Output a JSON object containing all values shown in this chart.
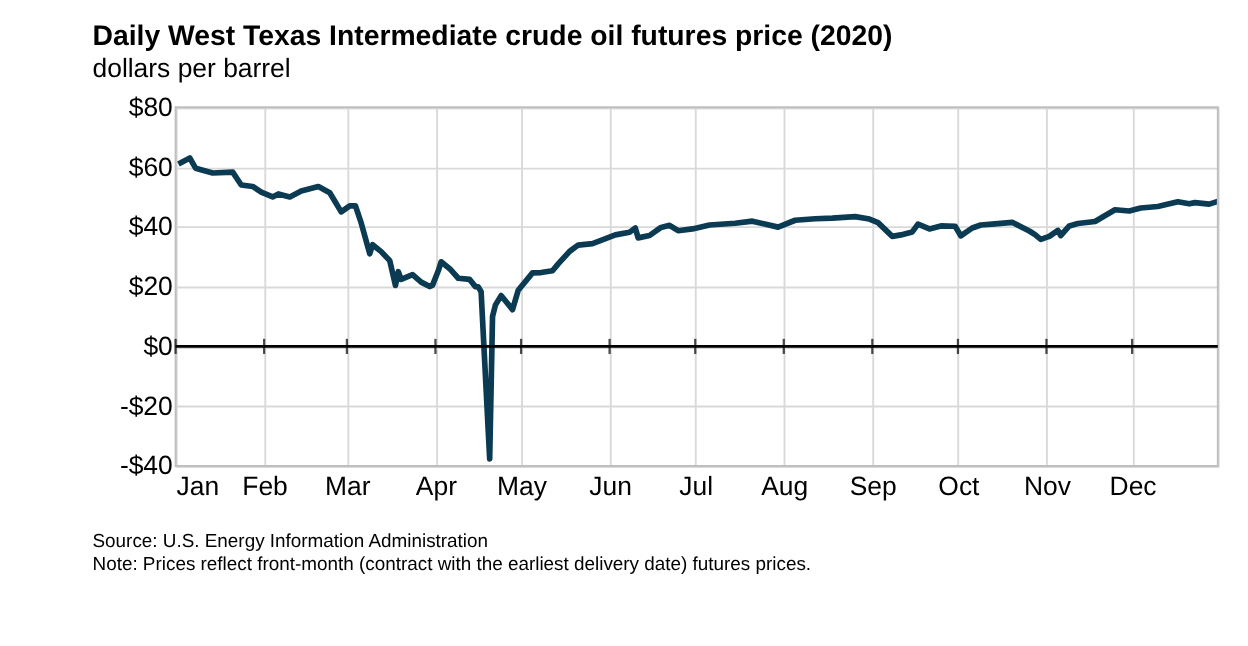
{
  "chart_data": {
    "type": "line",
    "title": "Daily West Texas Intermediate crude oil futures price (2020)",
    "ylabel": "dollars per barrel",
    "annotations": [
      "Source: U.S. Energy Information Administration",
      "Note: Prices reflect front-month (contract with the earliest delivery date) futures prices."
    ],
    "x": [
      "2020-01-02",
      "2020-01-06",
      "2020-01-08",
      "2020-01-14",
      "2020-01-21",
      "2020-01-24",
      "2020-01-28",
      "2020-01-31",
      "2020-02-04",
      "2020-02-06",
      "2020-02-10",
      "2020-02-14",
      "2020-02-20",
      "2020-02-24",
      "2020-02-28",
      "2020-03-02",
      "2020-03-04",
      "2020-03-06",
      "2020-03-09",
      "2020-03-10",
      "2020-03-13",
      "2020-03-16",
      "2020-03-18",
      "2020-03-19",
      "2020-03-20",
      "2020-03-24",
      "2020-03-27",
      "2020-03-30",
      "2020-03-31",
      "2020-04-02",
      "2020-04-03",
      "2020-04-06",
      "2020-04-09",
      "2020-04-13",
      "2020-04-15",
      "2020-04-16",
      "2020-04-17",
      "2020-04-20",
      "2020-04-21",
      "2020-04-22",
      "2020-04-24",
      "2020-04-28",
      "2020-04-30",
      "2020-05-05",
      "2020-05-08",
      "2020-05-12",
      "2020-05-14",
      "2020-05-18",
      "2020-05-21",
      "2020-05-26",
      "2020-05-29",
      "2020-06-03",
      "2020-06-08",
      "2020-06-10",
      "2020-06-11",
      "2020-06-15",
      "2020-06-19",
      "2020-06-22",
      "2020-06-25",
      "2020-06-30",
      "2020-07-06",
      "2020-07-15",
      "2020-07-21",
      "2020-07-30",
      "2020-08-05",
      "2020-08-12",
      "2020-08-18",
      "2020-08-26",
      "2020-08-31",
      "2020-09-03",
      "2020-09-08",
      "2020-09-11",
      "2020-09-15",
      "2020-09-17",
      "2020-09-21",
      "2020-09-25",
      "2020-09-30",
      "2020-10-02",
      "2020-10-06",
      "2020-10-09",
      "2020-10-14",
      "2020-10-20",
      "2020-10-26",
      "2020-10-28",
      "2020-10-30",
      "2020-11-02",
      "2020-11-05",
      "2020-11-06",
      "2020-11-09",
      "2020-11-12",
      "2020-11-18",
      "2020-11-25",
      "2020-11-30",
      "2020-12-04",
      "2020-12-10",
      "2020-12-17",
      "2020-12-21",
      "2020-12-23",
      "2020-12-28",
      "2020-12-31"
    ],
    "series": [
      {
        "color": "#0b3a53",
        "values": [
          61,
          63,
          59.6,
          58,
          58.3,
          54,
          53.5,
          51.6,
          50,
          51,
          50,
          52,
          53.5,
          51.4,
          45,
          47,
          47,
          41.3,
          31,
          34,
          31.7,
          28.7,
          20.4,
          25,
          22.4,
          24,
          21.5,
          20,
          20.5,
          25.3,
          28.3,
          26,
          22.8,
          22.4,
          20,
          19.9,
          18.3,
          -37.6,
          10,
          13.8,
          17,
          12.3,
          18.8,
          24.6,
          24.7,
          25.3,
          27.6,
          31.8,
          33.9,
          34.4,
          35.5,
          37.3,
          38.2,
          39.6,
          36.3,
          37.1,
          39.8,
          40.5,
          38.7,
          39.3,
          40.6,
          41.2,
          41.9,
          39.9,
          42.2,
          42.7,
          42.9,
          43.4,
          42.6,
          41.4,
          36.8,
          37.3,
          38.3,
          40.9,
          39.3,
          40.3,
          40.2,
          37,
          39.6,
          40.6,
          41,
          41.5,
          38.6,
          37.4,
          35.8,
          36.8,
          38.8,
          37.1,
          40.3,
          41.1,
          41.8,
          45.7,
          45.3,
          46.3,
          46.8,
          48.4,
          47.7,
          48.1,
          47.6,
          48.5
        ]
      }
    ],
    "xlim": [
      "2020-01-01",
      "2020-12-31"
    ],
    "xticks": [
      {
        "value": "2020-01-01",
        "label": "Jan"
      },
      {
        "value": "2020-02-01",
        "label": "Feb"
      },
      {
        "value": "2020-03-01",
        "label": "Mar"
      },
      {
        "value": "2020-04-01",
        "label": "Apr"
      },
      {
        "value": "2020-05-01",
        "label": "May"
      },
      {
        "value": "2020-06-01",
        "label": "Jun"
      },
      {
        "value": "2020-07-01",
        "label": "Jul"
      },
      {
        "value": "2020-08-01",
        "label": "Aug"
      },
      {
        "value": "2020-09-01",
        "label": "Sep"
      },
      {
        "value": "2020-10-01",
        "label": "Oct"
      },
      {
        "value": "2020-11-01",
        "label": "Nov"
      },
      {
        "value": "2020-12-01",
        "label": "Dec"
      }
    ],
    "ylim": [
      -40,
      80
    ],
    "yticks": [
      {
        "value": -40,
        "label": "-$40"
      },
      {
        "value": -20,
        "label": "-$20"
      },
      {
        "value": 0,
        "label": "$0"
      },
      {
        "value": 20,
        "label": "$20"
      },
      {
        "value": 40,
        "label": "$40"
      },
      {
        "value": 60,
        "label": "$60"
      },
      {
        "value": 80,
        "label": "$80"
      }
    ],
    "ref_lines": [
      {
        "axis": "y",
        "value": 0,
        "color": "#000000"
      }
    ],
    "grid": true,
    "marker": "none",
    "line_style": "solid"
  }
}
